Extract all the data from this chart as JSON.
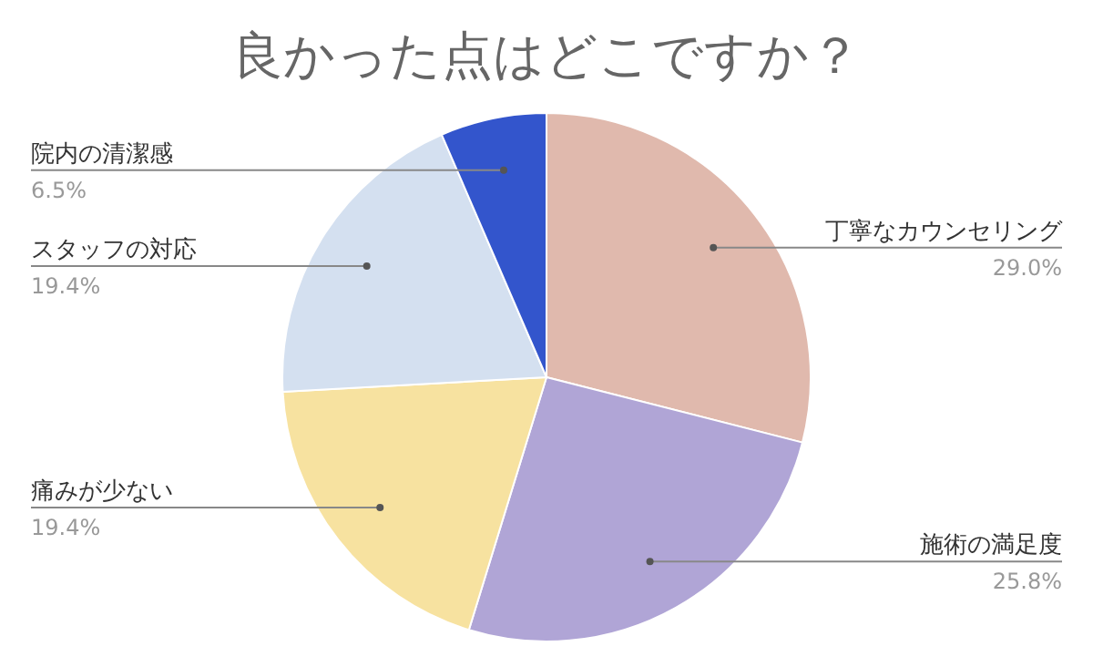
{
  "chart_data": {
    "type": "pie",
    "title": "良かった点はどこですか？",
    "categories": [
      "丁寧なカウンセリング",
      "施術の満足度",
      "痛みが少ない",
      "スタッフの対応",
      "院内の清潔感"
    ],
    "values": [
      29.0,
      25.8,
      19.4,
      19.4,
      6.5
    ],
    "colors": [
      "#e0b9ad",
      "#b0a5d6",
      "#f7e2a0",
      "#d4e0f0",
      "#3355cc"
    ],
    "value_labels": [
      "29.0%",
      "25.8%",
      "19.4%",
      "19.4%",
      "6.5%"
    ]
  }
}
